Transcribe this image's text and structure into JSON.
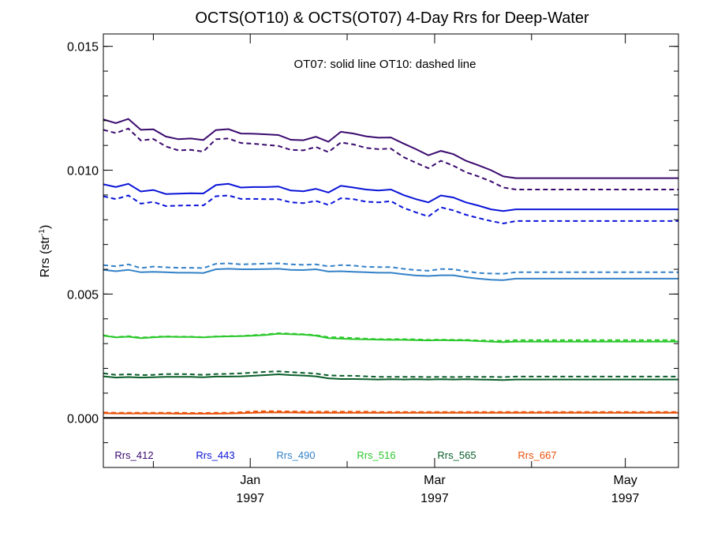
{
  "chart_data": {
    "type": "line",
    "title": "OCTS(OT10) & OCTS(OT07) 4-Day Rrs for Deep-Water",
    "ylabel": "Rrs (str",
    "ylabel_sup": "-1",
    "ylabel_close": ")",
    "annotation": "OT07: solid line   OT10: dashed line",
    "ylim": [
      -0.002,
      0.0155
    ],
    "y_ticks": [
      {
        "value": 0.0,
        "label": "0.000"
      },
      {
        "value": 0.005,
        "label": "0.005"
      },
      {
        "value": 0.01,
        "label": "0.010"
      },
      {
        "value": 0.015,
        "label": "0.015"
      }
    ],
    "y_minor_step": 0.001,
    "xlim": [
      0,
      184
    ],
    "x_ticks": [
      {
        "value": 47,
        "label": "Jan",
        "label2": "1997"
      },
      {
        "value": 106,
        "label": "Mar",
        "label2": "1997"
      },
      {
        "value": 167,
        "label": "May",
        "label2": "1997"
      }
    ],
    "x_minor_ticks": [
      16,
      78,
      137
    ],
    "x": [
      0,
      4,
      8,
      12,
      16,
      20,
      24,
      28,
      32,
      36,
      40,
      44,
      48,
      52,
      56,
      60,
      64,
      68,
      72,
      76,
      80,
      84,
      88,
      92,
      96,
      100,
      104,
      108,
      112,
      116,
      120,
      124,
      128,
      132,
      136,
      140,
      144,
      148,
      152,
      156,
      160,
      164,
      168,
      172,
      176,
      180,
      184
    ],
    "series": [
      {
        "name": "Rrs_412",
        "color": "#3b0a6e",
        "solid": [
          0.01205,
          0.0119,
          0.01207,
          0.01163,
          0.01165,
          0.01136,
          0.01125,
          0.01128,
          0.01122,
          0.01162,
          0.01166,
          0.01148,
          0.01147,
          0.01145,
          0.01142,
          0.01123,
          0.01121,
          0.01135,
          0.01115,
          0.01155,
          0.01148,
          0.01137,
          0.01131,
          0.01132,
          0.01108,
          0.01085,
          0.0106,
          0.01078,
          0.01065,
          0.01038,
          0.0102,
          0.01,
          0.00975,
          0.00968,
          0.00968,
          0.00968,
          0.00968,
          0.00968,
          0.00968,
          0.00968,
          0.00968,
          0.00968,
          0.00968,
          0.00968,
          0.00968,
          0.00968,
          0.00968
        ],
        "dashed": [
          0.01163,
          0.0115,
          0.01168,
          0.0112,
          0.01126,
          0.01096,
          0.0108,
          0.01082,
          0.01075,
          0.01125,
          0.01128,
          0.0111,
          0.01107,
          0.01102,
          0.01098,
          0.01082,
          0.0108,
          0.01094,
          0.01073,
          0.01112,
          0.01104,
          0.0109,
          0.01085,
          0.01087,
          0.01053,
          0.0103,
          0.01008,
          0.01038,
          0.01018,
          0.00992,
          0.00975,
          0.00955,
          0.0093,
          0.00922,
          0.00922,
          0.00922,
          0.00922,
          0.00922,
          0.00922,
          0.00922,
          0.00922,
          0.00922,
          0.00922,
          0.00922,
          0.00922,
          0.00922,
          0.00922
        ]
      },
      {
        "name": "Rrs_443",
        "color": "#0a14d8",
        "solid": [
          0.00943,
          0.00932,
          0.00945,
          0.00914,
          0.0092,
          0.00904,
          0.00905,
          0.00907,
          0.00906,
          0.0094,
          0.00945,
          0.0093,
          0.00932,
          0.00932,
          0.00934,
          0.00918,
          0.00915,
          0.00925,
          0.0091,
          0.00937,
          0.0093,
          0.00922,
          0.00918,
          0.00922,
          0.009,
          0.00883,
          0.0087,
          0.00898,
          0.0089,
          0.0087,
          0.00857,
          0.00842,
          0.00835,
          0.00842,
          0.00842,
          0.00842,
          0.00842,
          0.00842,
          0.00842,
          0.00842,
          0.00842,
          0.00842,
          0.00842,
          0.00842,
          0.00842,
          0.00842,
          0.00842
        ],
        "dashed": [
          0.00895,
          0.00883,
          0.00898,
          0.00865,
          0.00872,
          0.00855,
          0.00857,
          0.00858,
          0.00858,
          0.00895,
          0.00898,
          0.00884,
          0.00884,
          0.00883,
          0.00883,
          0.0087,
          0.00867,
          0.00876,
          0.0086,
          0.00887,
          0.00883,
          0.00873,
          0.0087,
          0.00875,
          0.00848,
          0.0083,
          0.00813,
          0.0085,
          0.00838,
          0.0082,
          0.00807,
          0.00795,
          0.00785,
          0.00795,
          0.00795,
          0.00795,
          0.00795,
          0.00795,
          0.00795,
          0.00795,
          0.00795,
          0.00795,
          0.00795,
          0.00795,
          0.00795,
          0.00795,
          0.00795
        ]
      },
      {
        "name": "Rrs_490",
        "color": "#3381c8",
        "solid": [
          0.00598,
          0.00592,
          0.00598,
          0.00588,
          0.0059,
          0.00588,
          0.00586,
          0.00586,
          0.00585,
          0.006,
          0.00602,
          0.006,
          0.006,
          0.00601,
          0.00602,
          0.00598,
          0.00597,
          0.006,
          0.00591,
          0.00592,
          0.0059,
          0.00588,
          0.00586,
          0.00586,
          0.0058,
          0.00575,
          0.00573,
          0.00576,
          0.00576,
          0.00568,
          0.00562,
          0.00558,
          0.00556,
          0.00562,
          0.00562,
          0.00562,
          0.00562,
          0.00562,
          0.00562,
          0.00562,
          0.00562,
          0.00562,
          0.00562,
          0.00562,
          0.00562,
          0.00562,
          0.00562
        ],
        "dashed": [
          0.00617,
          0.00612,
          0.0062,
          0.00605,
          0.00611,
          0.00608,
          0.00606,
          0.00606,
          0.00605,
          0.00622,
          0.00624,
          0.0062,
          0.00621,
          0.00623,
          0.00624,
          0.0062,
          0.00618,
          0.0062,
          0.00612,
          0.00617,
          0.00615,
          0.0061,
          0.00609,
          0.00609,
          0.00602,
          0.00597,
          0.00594,
          0.00601,
          0.006,
          0.00592,
          0.00585,
          0.00583,
          0.00582,
          0.00588,
          0.00588,
          0.00588,
          0.00588,
          0.00588,
          0.00588,
          0.00588,
          0.00588,
          0.00588,
          0.00588,
          0.00588,
          0.00588,
          0.00588,
          0.00588
        ]
      },
      {
        "name": "Rrs_516",
        "color": "#2bc82b",
        "solid": [
          0.00332,
          0.00325,
          0.00328,
          0.00322,
          0.00325,
          0.00328,
          0.00327,
          0.00327,
          0.00325,
          0.00328,
          0.00329,
          0.0033,
          0.00332,
          0.00335,
          0.0034,
          0.00338,
          0.00336,
          0.00332,
          0.00322,
          0.0032,
          0.00318,
          0.00317,
          0.00316,
          0.00315,
          0.00315,
          0.00314,
          0.00313,
          0.00314,
          0.00313,
          0.00313,
          0.0031,
          0.00308,
          0.00306,
          0.00308,
          0.00308,
          0.00308,
          0.00308,
          0.00308,
          0.00308,
          0.00308,
          0.00308,
          0.00308,
          0.00308,
          0.00308,
          0.00308,
          0.00308,
          0.00308
        ],
        "dashed": [
          0.00334,
          0.00326,
          0.0033,
          0.00324,
          0.00327,
          0.00329,
          0.00328,
          0.00328,
          0.00326,
          0.00329,
          0.0033,
          0.00331,
          0.00334,
          0.00337,
          0.00342,
          0.0034,
          0.00338,
          0.00334,
          0.00326,
          0.00325,
          0.00322,
          0.0032,
          0.00318,
          0.00318,
          0.00318,
          0.00317,
          0.00315,
          0.00316,
          0.00315,
          0.00315,
          0.00313,
          0.00312,
          0.00311,
          0.00314,
          0.00314,
          0.00314,
          0.00314,
          0.00314,
          0.00314,
          0.00314,
          0.00314,
          0.00314,
          0.00314,
          0.00314,
          0.00314,
          0.00314,
          0.00314
        ]
      },
      {
        "name": "Rrs_565",
        "color": "#0a5e2a",
        "solid": [
          0.00168,
          0.00163,
          0.00165,
          0.00163,
          0.00164,
          0.00166,
          0.00166,
          0.00166,
          0.00164,
          0.00167,
          0.00167,
          0.00168,
          0.0017,
          0.00173,
          0.00176,
          0.00173,
          0.00171,
          0.00168,
          0.0016,
          0.00157,
          0.00157,
          0.00156,
          0.00155,
          0.00156,
          0.00155,
          0.00156,
          0.00155,
          0.00156,
          0.00155,
          0.00156,
          0.00155,
          0.00154,
          0.00153,
          0.00155,
          0.00155,
          0.00155,
          0.00155,
          0.00155,
          0.00155,
          0.00155,
          0.00155,
          0.00155,
          0.00155,
          0.00155,
          0.00155,
          0.00155,
          0.00155
        ],
        "dashed": [
          0.0018,
          0.00174,
          0.00176,
          0.00173,
          0.00174,
          0.00177,
          0.00177,
          0.00176,
          0.00174,
          0.00177,
          0.00178,
          0.0018,
          0.00183,
          0.00186,
          0.00188,
          0.00185,
          0.00182,
          0.00179,
          0.00172,
          0.0017,
          0.0017,
          0.00168,
          0.00166,
          0.00166,
          0.00166,
          0.00166,
          0.00165,
          0.00166,
          0.00165,
          0.00166,
          0.00166,
          0.00166,
          0.00165,
          0.00167,
          0.00167,
          0.00167,
          0.00167,
          0.00167,
          0.00167,
          0.00167,
          0.00167,
          0.00167,
          0.00167,
          0.00167,
          0.00167,
          0.00167,
          0.00167
        ]
      },
      {
        "name": "Rrs_667",
        "color": "#e8520a",
        "solid": [
          0.00019,
          0.00018,
          0.00018,
          0.00018,
          0.00018,
          0.00018,
          0.00017,
          0.00017,
          0.00017,
          0.00017,
          0.00018,
          0.00019,
          0.00021,
          0.00022,
          0.00022,
          0.00022,
          0.00021,
          0.00021,
          0.00021,
          0.00021,
          0.00021,
          0.00021,
          0.00021,
          0.00021,
          0.00021,
          0.00021,
          0.00021,
          0.00021,
          0.00021,
          0.00021,
          0.00021,
          0.00021,
          0.00021,
          0.00021,
          0.00021,
          0.00021,
          0.00021,
          0.00021,
          0.00021,
          0.00021,
          0.00021,
          0.00021,
          0.00021,
          0.00021,
          0.00021,
          0.00021,
          0.00021
        ],
        "dashed": [
          0.00022,
          0.00021,
          0.00021,
          0.00021,
          0.00021,
          0.00021,
          0.00021,
          0.0002,
          0.0002,
          0.00021,
          0.00021,
          0.00023,
          0.00026,
          0.00027,
          0.00027,
          0.00026,
          0.00026,
          0.00025,
          0.00025,
          0.00025,
          0.00025,
          0.00025,
          0.00024,
          0.00024,
          0.00024,
          0.00024,
          0.00024,
          0.00024,
          0.00024,
          0.00024,
          0.00024,
          0.00024,
          0.00024,
          0.00024,
          0.00024,
          0.00024,
          0.00024,
          0.00024,
          0.00024,
          0.00024,
          0.00024,
          0.00024,
          0.00024,
          0.00024,
          0.00024,
          0.00024,
          0.00024
        ]
      }
    ],
    "zero_line": 0.0
  }
}
